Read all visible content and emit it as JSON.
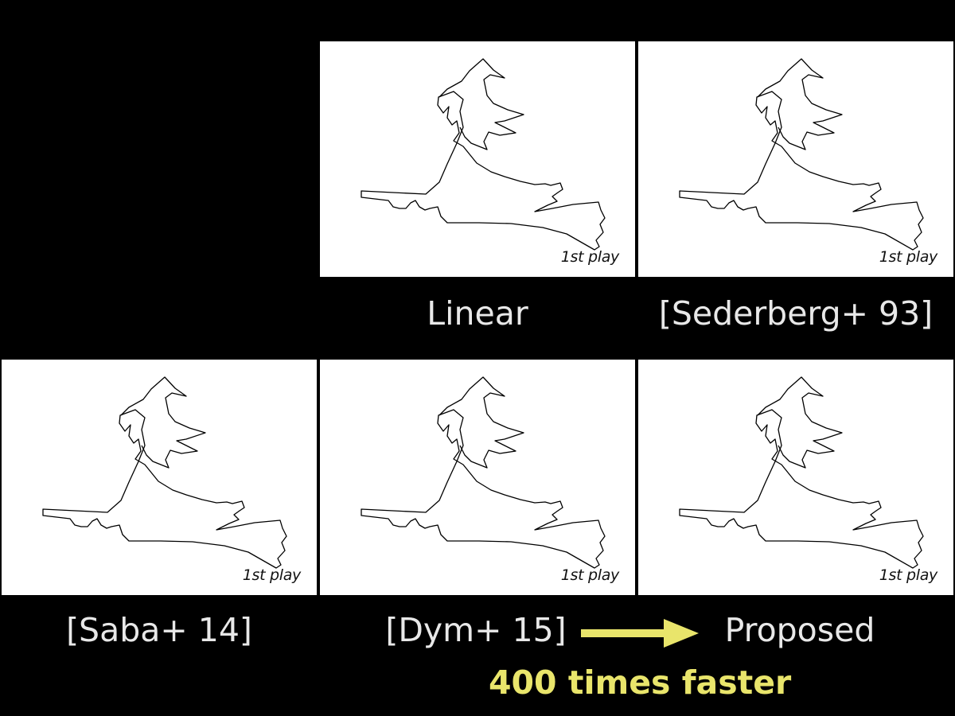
{
  "panels": [
    {
      "label": "1st play"
    },
    {
      "label": "1st play"
    },
    {
      "label": "1st play"
    },
    {
      "label": "1st play"
    },
    {
      "label": "1st play"
    }
  ],
  "captions": {
    "linear": "Linear",
    "sederberg": "[Sederberg+ 93]",
    "saba": "[Saba+ 14]",
    "dym": "[Dym+ 15]",
    "proposed": "Proposed"
  },
  "highlight": "400 times faster",
  "colors": {
    "background": "#000000",
    "panel": "#ffffff",
    "caption": "#e8e8e8",
    "accent": "#e9e56b"
  },
  "icons": {
    "arrow": "right-arrow-icon"
  }
}
